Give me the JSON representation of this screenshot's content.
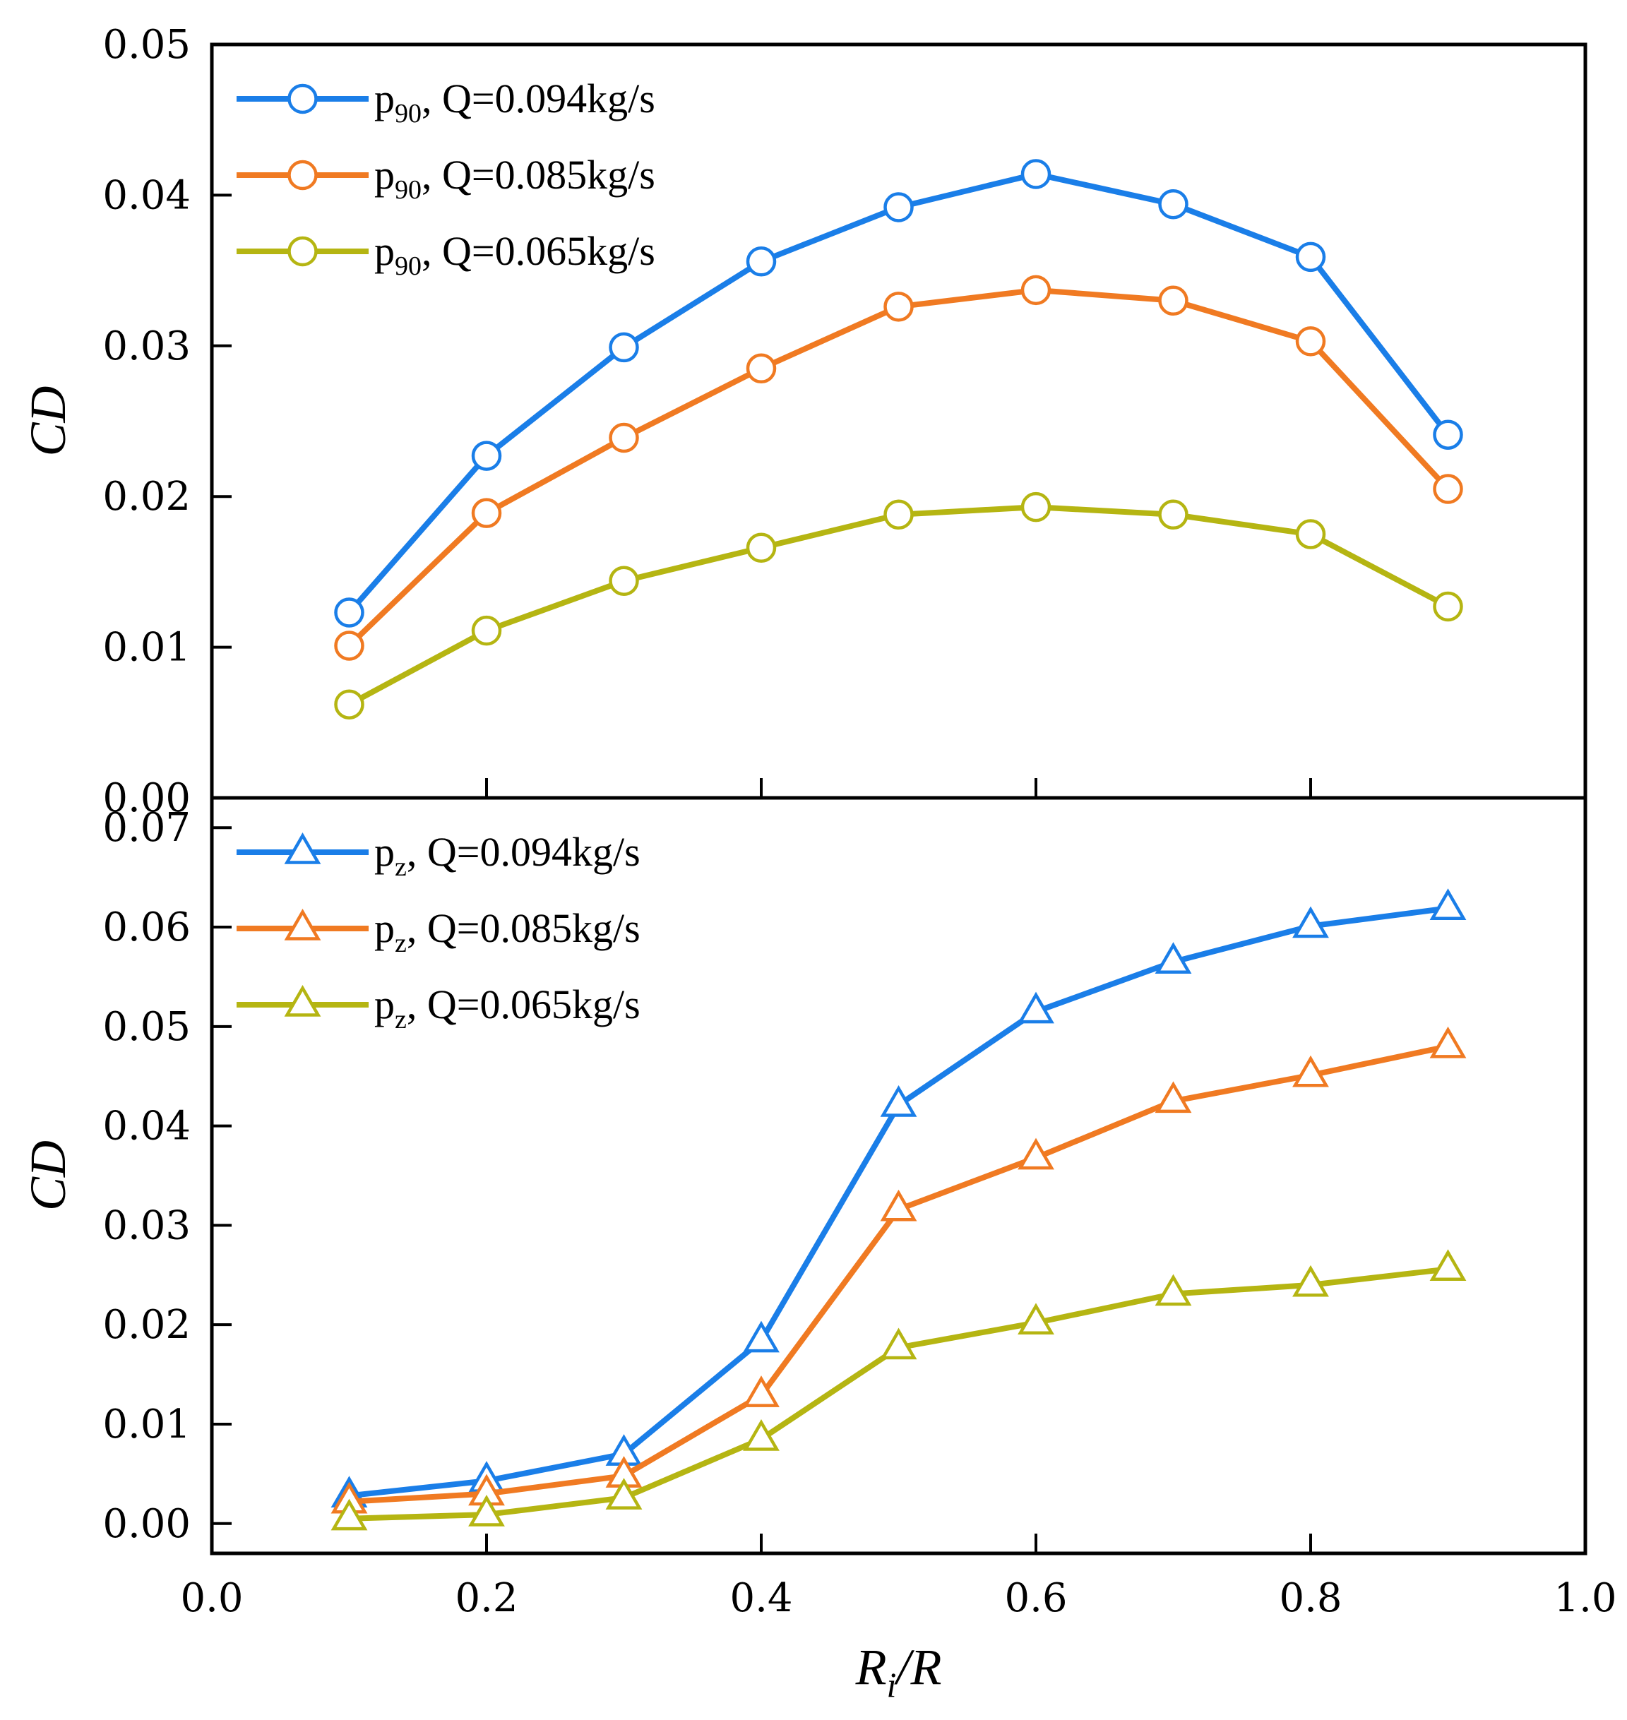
{
  "chart_data": [
    {
      "type": "line",
      "panel": "top",
      "ylabel": "CD",
      "ylim": [
        0.0,
        0.05
      ],
      "yticks": [
        "0.00",
        "0.01",
        "0.02",
        "0.03",
        "0.04",
        "0.05"
      ],
      "xlim": [
        0.0,
        1.0
      ],
      "marker": "circle",
      "legend_position": "top-left",
      "x": [
        0.1,
        0.2,
        0.3,
        0.4,
        0.5,
        0.6,
        0.7,
        0.8,
        0.9
      ],
      "series": [
        {
          "name_main": "p",
          "name_sub": "90",
          "name_rest": ", Q=0.094kg/s",
          "color": "#1a7ee8",
          "values": [
            0.0123,
            0.0227,
            0.0299,
            0.0356,
            0.0392,
            0.0414,
            0.0394,
            0.0359,
            0.0241
          ]
        },
        {
          "name_main": "p",
          "name_sub": "90",
          "name_rest": ", Q=0.085kg/s",
          "color": "#f07a22",
          "values": [
            0.0101,
            0.0189,
            0.0239,
            0.0285,
            0.0326,
            0.0337,
            0.033,
            0.0303,
            0.0205
          ]
        },
        {
          "name_main": "p",
          "name_sub": "90",
          "name_rest": ", Q=0.065kg/s",
          "color": "#b5b512",
          "values": [
            0.0062,
            0.0111,
            0.0144,
            0.0166,
            0.0188,
            0.0193,
            0.0188,
            0.0175,
            0.0127
          ]
        }
      ]
    },
    {
      "type": "line",
      "panel": "bottom",
      "ylabel": "CD",
      "ylim": [
        -0.003,
        0.073
      ],
      "yticks": [
        "0.00",
        "0.01",
        "0.02",
        "0.03",
        "0.04",
        "0.05",
        "0.06",
        "0.07"
      ],
      "xlim": [
        0.0,
        1.0
      ],
      "xticks": [
        "0.0",
        "0.2",
        "0.4",
        "0.6",
        "0.8",
        "1.0"
      ],
      "xlabel_main": "R",
      "xlabel_sub": "i",
      "xlabel_rest": "/R",
      "marker": "triangle",
      "legend_position": "top-left",
      "x": [
        0.1,
        0.2,
        0.3,
        0.4,
        0.5,
        0.6,
        0.7,
        0.8,
        0.9
      ],
      "series": [
        {
          "name_main": "p",
          "name_sub": "z",
          "name_rest": ", Q=0.094kg/s",
          "color": "#1a7ee8",
          "values": [
            0.0028,
            0.0043,
            0.007,
            0.0184,
            0.0421,
            0.0515,
            0.0565,
            0.0601,
            0.0619
          ]
        },
        {
          "name_main": "p",
          "name_sub": "z",
          "name_rest": ", Q=0.085kg/s",
          "color": "#f07a22",
          "values": [
            0.0022,
            0.003,
            0.0048,
            0.0129,
            0.0316,
            0.0368,
            0.0425,
            0.0451,
            0.048
          ]
        },
        {
          "name_main": "p",
          "name_sub": "z",
          "name_rest": ", Q=0.065kg/s",
          "color": "#b5b512",
          "values": [
            0.0005,
            0.0009,
            0.0026,
            0.0085,
            0.0177,
            0.0202,
            0.0231,
            0.024,
            0.0256
          ]
        }
      ]
    }
  ]
}
